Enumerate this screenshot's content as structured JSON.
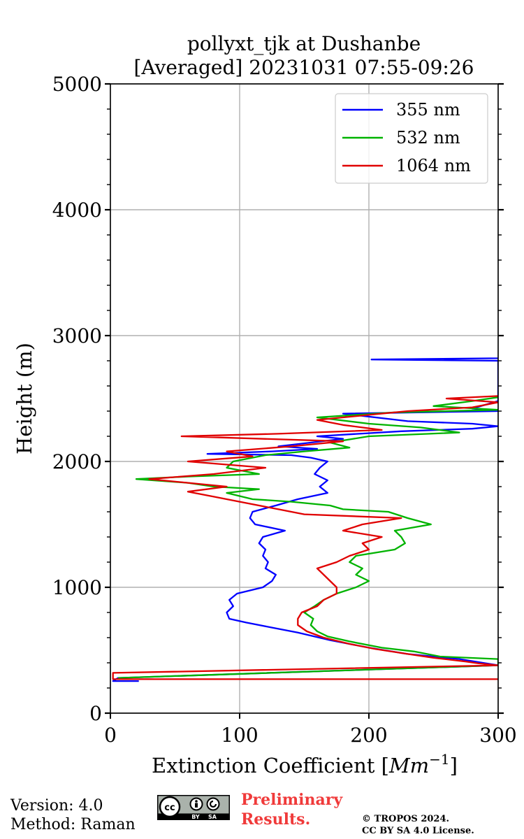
{
  "colors": {
    "s355": "#0000ff",
    "s532": "#00b300",
    "s1064": "#e00000",
    "grid": "#b0b0b0",
    "prelim": "#f03a3a"
  },
  "chart_data": {
    "type": "line",
    "title": "pollyxt_tjk at Dushanbe",
    "subtitle": "[Averaged] 20231031 07:55-09:26",
    "xlabel_main": "Extinction Coefficient [",
    "xlabel_unit": "Mm",
    "xlabel_exp": "−1",
    "xlabel_close": "]",
    "ylabel": "Height (m)",
    "xlim": [
      0,
      300
    ],
    "ylim": [
      0,
      5000
    ],
    "xticks": [
      0,
      100,
      200,
      300
    ],
    "xtick_labels": [
      "0",
      "100",
      "200",
      "300"
    ],
    "yticks": [
      0,
      1000,
      2000,
      3000,
      4000,
      5000
    ],
    "ytick_labels": [
      "0",
      "1000",
      "2000",
      "3000",
      "4000",
      "5000"
    ],
    "legend_position": "top-right",
    "grid": true,
    "series": [
      {
        "name": "355 nm",
        "key": "s355",
        "points": [
          [
            22,
            255
          ],
          [
            2,
            255
          ],
          [
            6,
            280
          ],
          [
            300,
            380
          ],
          [
            270,
            430
          ],
          [
            230,
            470
          ],
          [
            200,
            520
          ],
          [
            170,
            580
          ],
          [
            145,
            640
          ],
          [
            125,
            680
          ],
          [
            105,
            720
          ],
          [
            92,
            750
          ],
          [
            90,
            800
          ],
          [
            95,
            850
          ],
          [
            92,
            900
          ],
          [
            98,
            950
          ],
          [
            118,
            1000
          ],
          [
            125,
            1050
          ],
          [
            128,
            1100
          ],
          [
            120,
            1150
          ],
          [
            122,
            1200
          ],
          [
            118,
            1250
          ],
          [
            120,
            1300
          ],
          [
            115,
            1350
          ],
          [
            118,
            1400
          ],
          [
            135,
            1450
          ],
          [
            112,
            1500
          ],
          [
            108,
            1550
          ],
          [
            110,
            1600
          ],
          [
            128,
            1650
          ],
          [
            145,
            1700
          ],
          [
            168,
            1750
          ],
          [
            162,
            1800
          ],
          [
            168,
            1850
          ],
          [
            158,
            1900
          ],
          [
            162,
            1950
          ],
          [
            168,
            2000
          ],
          [
            155,
            2030
          ],
          [
            140,
            2050
          ],
          [
            75,
            2060
          ],
          [
            125,
            2080
          ],
          [
            160,
            2100
          ],
          [
            130,
            2120
          ],
          [
            155,
            2150
          ],
          [
            180,
            2180
          ],
          [
            160,
            2200
          ],
          [
            225,
            2240
          ],
          [
            280,
            2260
          ],
          [
            300,
            2280
          ],
          [
            280,
            2300
          ],
          [
            230,
            2320
          ],
          [
            180,
            2380
          ],
          [
            300,
            2400
          ],
          [
            280,
            2420
          ],
          [
            300,
            2480
          ],
          [
            300,
            2800
          ],
          [
            202,
            2810
          ],
          [
            300,
            2820
          ],
          [
            305,
            2830
          ]
        ]
      },
      {
        "name": "532 nm",
        "key": "s532",
        "points": [
          [
            6,
            280
          ],
          [
            300,
            380
          ],
          [
            300,
            430
          ],
          [
            255,
            450
          ],
          [
            235,
            490
          ],
          [
            210,
            520
          ],
          [
            185,
            570
          ],
          [
            168,
            610
          ],
          [
            160,
            650
          ],
          [
            155,
            700
          ],
          [
            157,
            750
          ],
          [
            150,
            800
          ],
          [
            158,
            850
          ],
          [
            165,
            900
          ],
          [
            175,
            950
          ],
          [
            190,
            1000
          ],
          [
            200,
            1050
          ],
          [
            190,
            1100
          ],
          [
            195,
            1150
          ],
          [
            185,
            1200
          ],
          [
            190,
            1250
          ],
          [
            220,
            1300
          ],
          [
            228,
            1350
          ],
          [
            225,
            1400
          ],
          [
            220,
            1450
          ],
          [
            248,
            1500
          ],
          [
            230,
            1550
          ],
          [
            215,
            1600
          ],
          [
            180,
            1620
          ],
          [
            170,
            1650
          ],
          [
            140,
            1680
          ],
          [
            110,
            1700
          ],
          [
            90,
            1750
          ],
          [
            115,
            1780
          ],
          [
            80,
            1800
          ],
          [
            60,
            1830
          ],
          [
            20,
            1860
          ],
          [
            60,
            1880
          ],
          [
            115,
            1900
          ],
          [
            90,
            1950
          ],
          [
            95,
            2000
          ],
          [
            120,
            2050
          ],
          [
            150,
            2080
          ],
          [
            185,
            2110
          ],
          [
            170,
            2150
          ],
          [
            200,
            2200
          ],
          [
            270,
            2230
          ],
          [
            240,
            2270
          ],
          [
            200,
            2300
          ],
          [
            160,
            2350
          ],
          [
            220,
            2390
          ],
          [
            300,
            2410
          ],
          [
            250,
            2440
          ],
          [
            280,
            2480
          ],
          [
            300,
            2510
          ]
        ]
      },
      {
        "name": "1064 nm",
        "key": "s1064",
        "points": [
          [
            300,
            270
          ],
          [
            2,
            270
          ],
          [
            2,
            320
          ],
          [
            300,
            380
          ],
          [
            285,
            395
          ],
          [
            275,
            410
          ],
          [
            250,
            440
          ],
          [
            230,
            470
          ],
          [
            205,
            510
          ],
          [
            185,
            550
          ],
          [
            165,
            600
          ],
          [
            152,
            650
          ],
          [
            145,
            700
          ],
          [
            145,
            750
          ],
          [
            148,
            800
          ],
          [
            160,
            850
          ],
          [
            165,
            900
          ],
          [
            175,
            950
          ],
          [
            175,
            1000
          ],
          [
            170,
            1050
          ],
          [
            165,
            1100
          ],
          [
            160,
            1150
          ],
          [
            175,
            1200
          ],
          [
            185,
            1250
          ],
          [
            200,
            1300
          ],
          [
            195,
            1350
          ],
          [
            210,
            1400
          ],
          [
            180,
            1450
          ],
          [
            195,
            1500
          ],
          [
            225,
            1550
          ],
          [
            150,
            1580
          ],
          [
            130,
            1620
          ],
          [
            100,
            1680
          ],
          [
            80,
            1720
          ],
          [
            60,
            1760
          ],
          [
            90,
            1800
          ],
          [
            30,
            1860
          ],
          [
            80,
            1900
          ],
          [
            120,
            1950
          ],
          [
            60,
            2000
          ],
          [
            110,
            2040
          ],
          [
            90,
            2080
          ],
          [
            140,
            2120
          ],
          [
            180,
            2160
          ],
          [
            55,
            2200
          ],
          [
            130,
            2220
          ],
          [
            210,
            2250
          ],
          [
            180,
            2290
          ],
          [
            160,
            2330
          ],
          [
            200,
            2370
          ],
          [
            230,
            2400
          ],
          [
            280,
            2430
          ],
          [
            300,
            2470
          ],
          [
            260,
            2500
          ],
          [
            300,
            2520
          ]
        ]
      }
    ]
  },
  "footer": {
    "version": "Version: 4.0",
    "method": "Method: Raman",
    "prelim_line1": "Preliminary",
    "prelim_line2": "Results.",
    "copyright_line1": "© TROPOS 2024.",
    "copyright_line2": "CC BY SA 4.0 License.",
    "license_badge": {
      "cc": "cc",
      "by": "BY",
      "sa": "SA"
    }
  }
}
